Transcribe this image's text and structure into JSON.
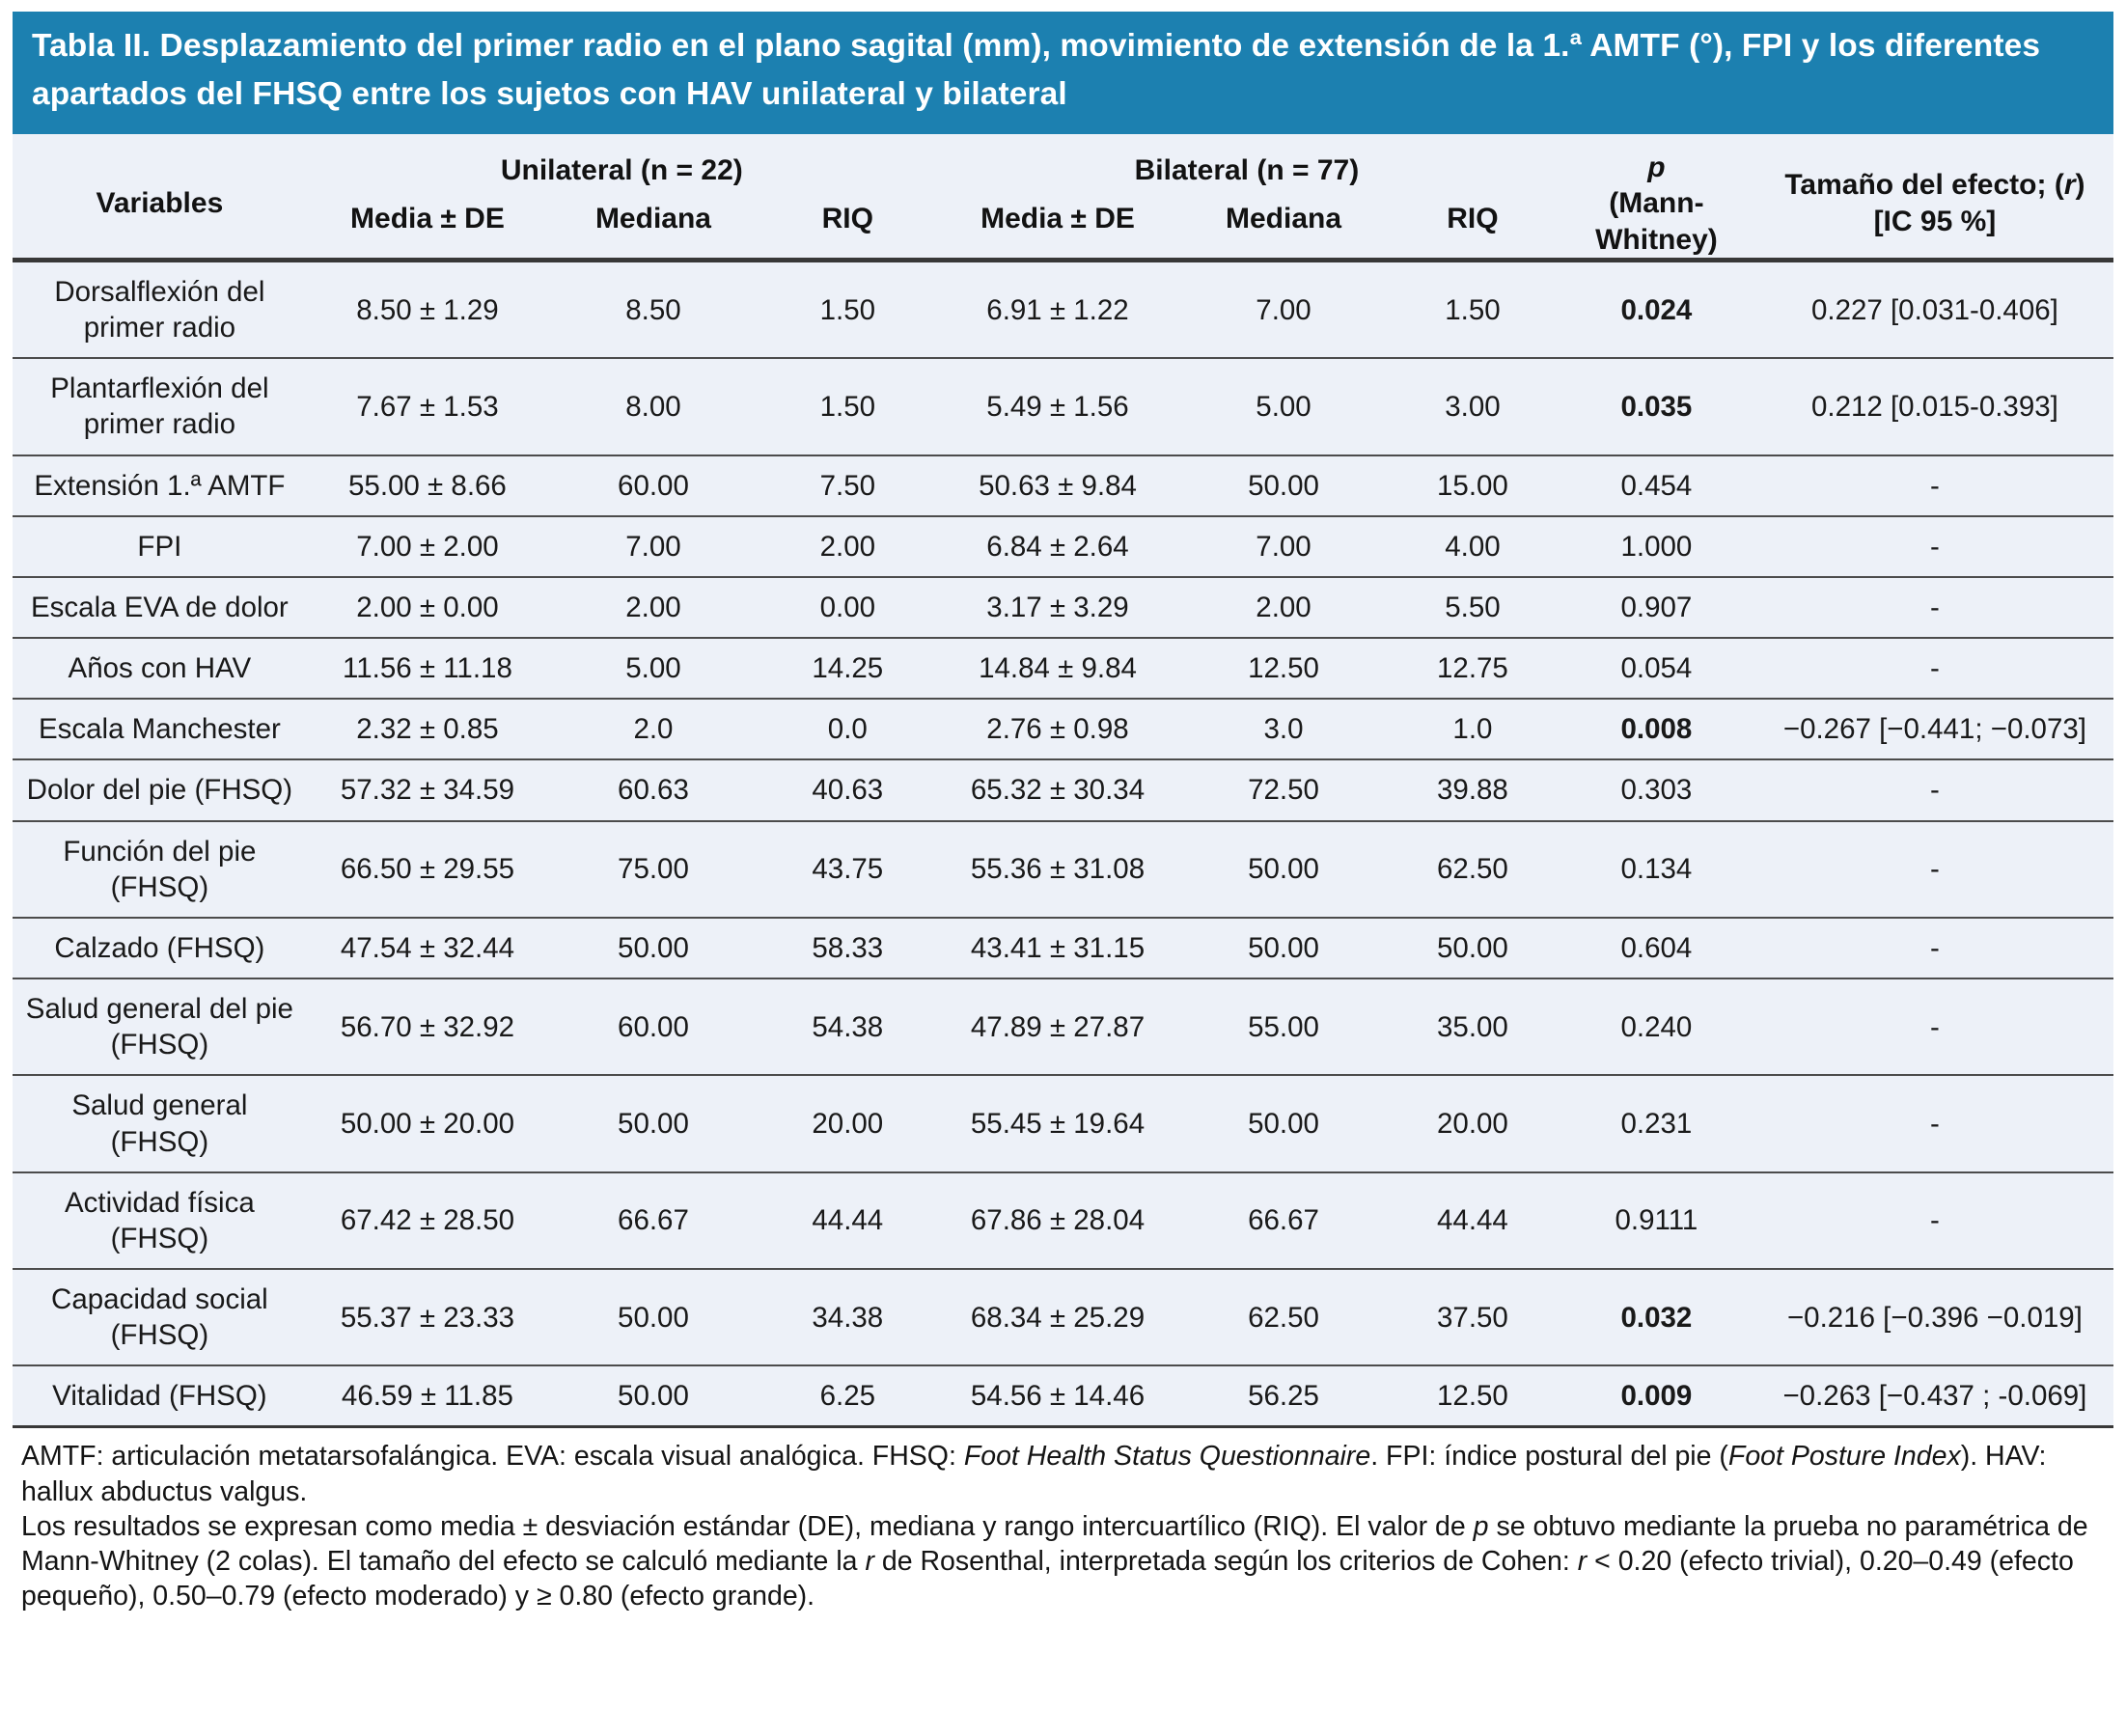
{
  "colors": {
    "title_bar_bg": "#1C80B0",
    "title_text": "#FFFFFF",
    "row_bg": "#EDF1F8",
    "rule_dark": "#383838"
  },
  "title": "Tabla II. Desplazamiento del primer radio en el plano sagital (mm), movimiento de extensión de la 1.ª AMTF (°), FPI y los diferentes apartados del FHSQ entre los sujetos con HAV unilateral y bilateral",
  "table": {
    "header": {
      "variables": "Variables",
      "group_unilateral": "Unilateral (n = 22)",
      "group_bilateral": "Bilateral (n = 77)",
      "sub": [
        "Media ± DE",
        "Mediana",
        "RIQ",
        "Media ± DE",
        "Mediana",
        "RIQ"
      ],
      "p_line1": "p",
      "p_line2": "(Mann-",
      "p_line3": "Whitney)",
      "effect_prefix": "Tamaño del efecto; (",
      "effect_r": "r",
      "effect_suffix": ")",
      "effect_line2": "[IC 95 %]"
    },
    "rows": [
      {
        "label": "Dorsalflexión del primer radio",
        "uni_media": "8.50 ± 1.29",
        "uni_mediana": "8.50",
        "uni_riq": "1.50",
        "bil_media": "6.91 ± 1.22",
        "bil_mediana": "7.00",
        "bil_riq": "1.50",
        "p": "0.024",
        "p_bold": true,
        "effect": "0.227 [0.031-0.406]"
      },
      {
        "label": "Plantarflexión del primer radio",
        "uni_media": "7.67 ± 1.53",
        "uni_mediana": "8.00",
        "uni_riq": "1.50",
        "bil_media": "5.49 ± 1.56",
        "bil_mediana": "5.00",
        "bil_riq": "3.00",
        "p": "0.035",
        "p_bold": true,
        "effect": "0.212 [0.015-0.393]"
      },
      {
        "label": "Extensión 1.ª AMTF",
        "uni_media": "55.00 ± 8.66",
        "uni_mediana": "60.00",
        "uni_riq": "7.50",
        "bil_media": "50.63 ± 9.84",
        "bil_mediana": "50.00",
        "bil_riq": "15.00",
        "p": "0.454",
        "p_bold": false,
        "effect": "-"
      },
      {
        "label": "FPI",
        "uni_media": "7.00 ± 2.00",
        "uni_mediana": "7.00",
        "uni_riq": "2.00",
        "bil_media": "6.84 ± 2.64",
        "bil_mediana": "7.00",
        "bil_riq": "4.00",
        "p": "1.000",
        "p_bold": false,
        "effect": "-"
      },
      {
        "label": "Escala EVA de dolor",
        "uni_media": "2.00 ± 0.00",
        "uni_mediana": "2.00",
        "uni_riq": "0.00",
        "bil_media": "3.17 ± 3.29",
        "bil_mediana": "2.00",
        "bil_riq": "5.50",
        "p": "0.907",
        "p_bold": false,
        "effect": "-"
      },
      {
        "label": "Años con HAV",
        "uni_media": "11.56 ± 11.18",
        "uni_mediana": "5.00",
        "uni_riq": "14.25",
        "bil_media": "14.84 ± 9.84",
        "bil_mediana": "12.50",
        "bil_riq": "12.75",
        "p": "0.054",
        "p_bold": false,
        "effect": "-"
      },
      {
        "label": "Escala Manchester",
        "uni_media": "2.32 ± 0.85",
        "uni_mediana": "2.0",
        "uni_riq": "0.0",
        "bil_media": "2.76 ± 0.98",
        "bil_mediana": "3.0",
        "bil_riq": "1.0",
        "p": "0.008",
        "p_bold": true,
        "effect": "−0.267 [−0.441; −0.073]"
      },
      {
        "label": "Dolor del pie (FHSQ)",
        "uni_media": "57.32 ± 34.59",
        "uni_mediana": "60.63",
        "uni_riq": "40.63",
        "bil_media": "65.32 ± 30.34",
        "bil_mediana": "72.50",
        "bil_riq": "39.88",
        "p": "0.303",
        "p_bold": false,
        "effect": "-"
      },
      {
        "label": "Función del pie (FHSQ)",
        "uni_media": "66.50 ± 29.55",
        "uni_mediana": "75.00",
        "uni_riq": "43.75",
        "bil_media": "55.36 ± 31.08",
        "bil_mediana": "50.00",
        "bil_riq": "62.50",
        "p": "0.134",
        "p_bold": false,
        "effect": "-"
      },
      {
        "label": "Calzado (FHSQ)",
        "uni_media": "47.54 ± 32.44",
        "uni_mediana": "50.00",
        "uni_riq": "58.33",
        "bil_media": "43.41 ± 31.15",
        "bil_mediana": "50.00",
        "bil_riq": "50.00",
        "p": "0.604",
        "p_bold": false,
        "effect": "-"
      },
      {
        "label": "Salud general del pie (FHSQ)",
        "uni_media": "56.70 ± 32.92",
        "uni_mediana": "60.00",
        "uni_riq": "54.38",
        "bil_media": "47.89 ± 27.87",
        "bil_mediana": "55.00",
        "bil_riq": "35.00",
        "p": "0.240",
        "p_bold": false,
        "effect": "-"
      },
      {
        "label": "Salud general (FHSQ)",
        "uni_media": "50.00 ± 20.00",
        "uni_mediana": "50.00",
        "uni_riq": "20.00",
        "bil_media": "55.45 ± 19.64",
        "bil_mediana": "50.00",
        "bil_riq": "20.00",
        "p": "0.231",
        "p_bold": false,
        "effect": "-"
      },
      {
        "label": "Actividad física (FHSQ)",
        "uni_media": "67.42 ± 28.50",
        "uni_mediana": "66.67",
        "uni_riq": "44.44",
        "bil_media": "67.86 ± 28.04",
        "bil_mediana": "66.67",
        "bil_riq": "44.44",
        "p": "0.9111",
        "p_bold": false,
        "effect": "-"
      },
      {
        "label": "Capacidad social (FHSQ)",
        "uni_media": "55.37 ± 23.33",
        "uni_mediana": "50.00",
        "uni_riq": "34.38",
        "bil_media": "68.34 ± 25.29",
        "bil_mediana": "62.50",
        "bil_riq": "37.50",
        "p": "0.032",
        "p_bold": true,
        "effect": "−0.216 [−0.396 −0.019]"
      },
      {
        "label": "Vitalidad (FHSQ)",
        "uni_media": "46.59 ± 11.85",
        "uni_mediana": "50.00",
        "uni_riq": "6.25",
        "bil_media": "54.56 ± 14.46",
        "bil_mediana": "56.25",
        "bil_riq": "12.50",
        "p": "0.009",
        "p_bold": true,
        "effect": "−0.263 [−0.437 ; -0.069]"
      }
    ]
  },
  "footnotes": [
    {
      "segments": [
        {
          "text": "AMTF: articulación metatarsofalángica. EVA: escala visual analógica. FHSQ: "
        },
        {
          "text": "Foot Health Status Questionnaire",
          "italic": true
        },
        {
          "text": ". FPI: índice postural del pie ("
        },
        {
          "text": "Foot Posture Index",
          "italic": true
        },
        {
          "text": "). HAV: hallux abductus valgus."
        }
      ]
    },
    {
      "segments": [
        {
          "text": "Los resultados se expresan como media ± desviación estándar (DE), mediana y rango intercuartílico (RIQ). El valor de "
        },
        {
          "text": "p",
          "italic": true
        },
        {
          "text": " se obtuvo mediante la prueba no paramétrica de Mann-Whitney (2 colas). El tamaño del efecto se calculó mediante la "
        },
        {
          "text": "r",
          "italic": true
        },
        {
          "text": " de Rosenthal, interpretada según los criterios de Cohen: "
        },
        {
          "text": "r",
          "italic": true
        },
        {
          "text": " < 0.20 (efecto trivial), 0.20–0.49 (efecto pequeño), 0.50–0.79 (efecto moderado) y ≥ 0.80 (efecto grande)."
        }
      ]
    }
  ]
}
